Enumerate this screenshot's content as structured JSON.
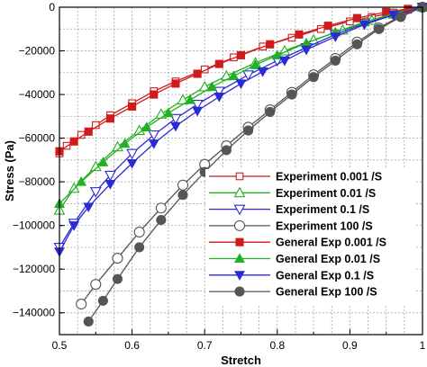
{
  "chart_data": {
    "type": "line",
    "xlabel": "Stretch",
    "ylabel": "Stress (Pa)",
    "xlim": [
      0.5,
      1.0
    ],
    "ylim": [
      -150000,
      0
    ],
    "xticks": [
      0.5,
      0.6,
      0.7,
      0.8,
      0.9,
      1.0
    ],
    "xtick_labels": [
      "0.5",
      "0.6",
      "0.7",
      "0.8",
      "0.9",
      "1"
    ],
    "yticks": [
      0,
      -20000,
      -40000,
      -60000,
      -80000,
      -100000,
      -120000,
      -140000
    ],
    "ytick_labels": [
      "0",
      "−20000",
      "−40000",
      "−60000",
      "−80000",
      "−100000",
      "−120000",
      "−140000"
    ],
    "grid": true,
    "legend_position": "lower-right",
    "series": [
      {
        "name": "Experiment 0.001 /S",
        "color": "#d11a1a",
        "marker": "square-open",
        "x": [
          0.5,
          0.51,
          0.53,
          0.55,
          0.57,
          0.6,
          0.63,
          0.66,
          0.7,
          0.74,
          0.78,
          0.82,
          0.86,
          0.9,
          0.93,
          0.96,
          0.98,
          1.0
        ],
        "y": [
          -67000,
          -63500,
          -58500,
          -54000,
          -49500,
          -44000,
          -38500,
          -34000,
          -28500,
          -23000,
          -18000,
          -14000,
          -10000,
          -6500,
          -4500,
          -2500,
          -1200,
          0
        ]
      },
      {
        "name": "Experiment 0.01 /S",
        "color": "#22b022",
        "marker": "triangle-open",
        "x": [
          0.5,
          0.52,
          0.55,
          0.58,
          0.61,
          0.64,
          0.67,
          0.7,
          0.73,
          0.77,
          0.81,
          0.85,
          0.89,
          0.93,
          0.96,
          1.0
        ],
        "y": [
          -93000,
          -83000,
          -73000,
          -64000,
          -56500,
          -49000,
          -42500,
          -36500,
          -31500,
          -25500,
          -20000,
          -15000,
          -10500,
          -6000,
          -3200,
          0
        ]
      },
      {
        "name": "Experiment 0.1 /S",
        "color": "#2a2ad6",
        "marker": "triangle-down-open",
        "x": [
          0.5,
          0.52,
          0.55,
          0.57,
          0.6,
          0.63,
          0.66,
          0.69,
          0.72,
          0.76,
          0.8,
          0.84,
          0.88,
          0.92,
          0.96,
          1.0
        ],
        "y": [
          -110000,
          -99000,
          -84500,
          -77000,
          -67000,
          -58500,
          -51000,
          -44500,
          -38500,
          -31000,
          -24500,
          -18500,
          -12500,
          -7500,
          -3500,
          0
        ]
      },
      {
        "name": "Experiment 100 /S",
        "color": "#555555",
        "marker": "circle-open",
        "x": [
          0.53,
          0.55,
          0.58,
          0.61,
          0.64,
          0.67,
          0.7,
          0.73,
          0.76,
          0.79,
          0.82,
          0.85,
          0.88,
          0.91,
          0.94,
          0.97,
          1.0
        ],
        "y": [
          -136000,
          -127000,
          -115000,
          -103000,
          -92000,
          -81500,
          -72000,
          -63500,
          -55000,
          -47000,
          -39000,
          -31000,
          -23500,
          -16000,
          -9500,
          -4000,
          0
        ]
      },
      {
        "name": "General Exp 0.001 /S",
        "color": "#d11a1a",
        "marker": "square-filled",
        "x": [
          0.5,
          0.52,
          0.54,
          0.57,
          0.6,
          0.63,
          0.66,
          0.69,
          0.72,
          0.75,
          0.79,
          0.83,
          0.87,
          0.91,
          0.95,
          0.98,
          1.0
        ],
        "y": [
          -66000,
          -61500,
          -57000,
          -51000,
          -45500,
          -40000,
          -35000,
          -30500,
          -26000,
          -22000,
          -17000,
          -12500,
          -8500,
          -5000,
          -2200,
          -800,
          0
        ]
      },
      {
        "name": "General Exp 0.01 /S",
        "color": "#22b022",
        "marker": "triangle-filled",
        "x": [
          0.5,
          0.53,
          0.56,
          0.59,
          0.62,
          0.65,
          0.68,
          0.71,
          0.74,
          0.77,
          0.8,
          0.84,
          0.88,
          0.92,
          0.96,
          1.0
        ],
        "y": [
          -90000,
          -80000,
          -71000,
          -62500,
          -55000,
          -48500,
          -42500,
          -36500,
          -31500,
          -26500,
          -22000,
          -16500,
          -11500,
          -6800,
          -3000,
          0
        ]
      },
      {
        "name": "General Exp 0.1 /S",
        "color": "#2a2ad6",
        "marker": "triangle-down-filled",
        "x": [
          0.5,
          0.52,
          0.54,
          0.57,
          0.6,
          0.63,
          0.66,
          0.69,
          0.72,
          0.75,
          0.78,
          0.81,
          0.84,
          0.88,
          0.92,
          0.96,
          1.0
        ],
        "y": [
          -112000,
          -100000,
          -91500,
          -81000,
          -71500,
          -62500,
          -54500,
          -47500,
          -41000,
          -35000,
          -29500,
          -24500,
          -19500,
          -13500,
          -8000,
          -3500,
          0
        ]
      },
      {
        "name": "General Exp 100 /S",
        "color": "#555555",
        "marker": "circle-filled",
        "x": [
          0.54,
          0.56,
          0.58,
          0.61,
          0.64,
          0.67,
          0.7,
          0.73,
          0.76,
          0.79,
          0.82,
          0.85,
          0.88,
          0.91,
          0.94,
          0.97,
          1.0
        ],
        "y": [
          -144000,
          -134500,
          -124500,
          -110000,
          -97500,
          -86000,
          -75500,
          -65500,
          -56500,
          -48000,
          -40000,
          -32000,
          -24500,
          -17000,
          -10000,
          -4500,
          0
        ]
      }
    ]
  }
}
